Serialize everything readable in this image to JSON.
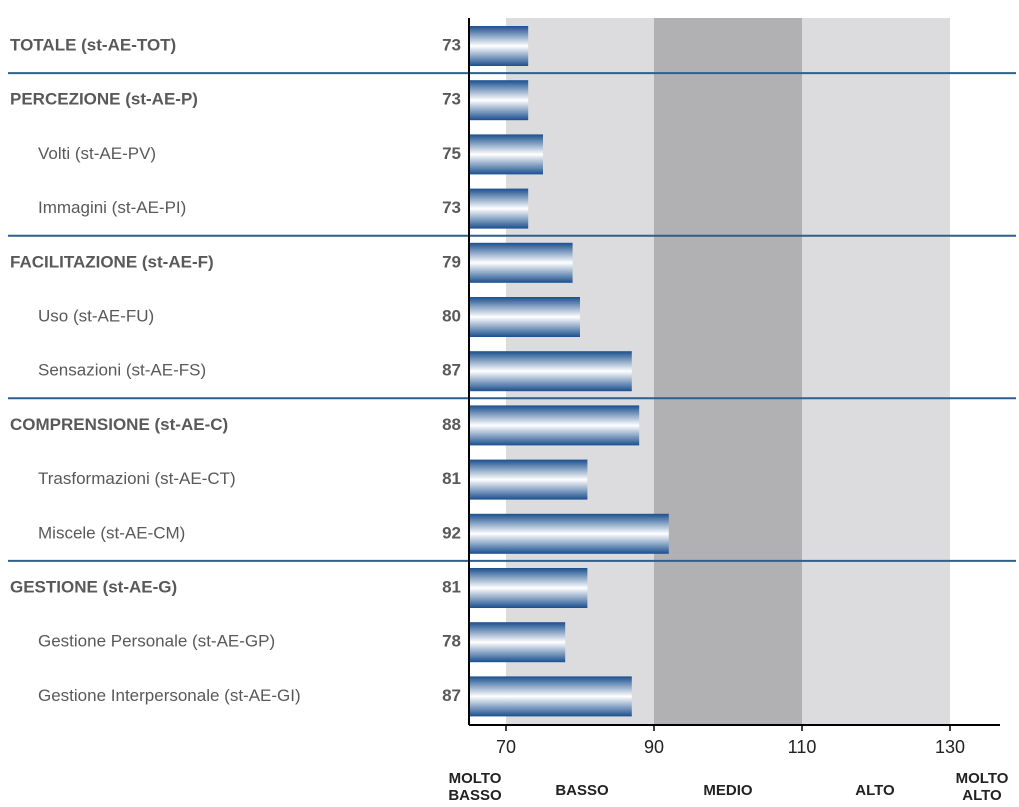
{
  "chart_data": {
    "type": "bar",
    "orientation": "horizontal",
    "categories": [
      "TOTALE (st-AE-TOT)",
      "PERCEZIONE (st-AE-P)",
      "Volti (st-AE-PV)",
      "Immagini (st-AE-PI)",
      "FACILITAZIONE (st-AE-F)",
      "Uso (st-AE-FU)",
      "Sensazioni (st-AE-FS)",
      "COMPRENSIONE (st-AE-C)",
      "Trasformazioni (st-AE-CT)",
      "Miscele (st-AE-CM)",
      "GESTIONE (st-AE-G)",
      "Gestione Personale (st-AE-GP)",
      "Gestione Interpersonale (st-AE-GI)"
    ],
    "values": [
      73,
      73,
      75,
      73,
      79,
      80,
      87,
      88,
      81,
      92,
      81,
      78,
      87
    ],
    "value_labels": [
      "73",
      "73",
      "75",
      "73",
      "79",
      "80",
      "87",
      "88",
      "81",
      "92",
      "81",
      "78",
      "87"
    ],
    "headers": [
      true,
      true,
      false,
      false,
      true,
      false,
      false,
      true,
      false,
      false,
      true,
      false,
      false
    ],
    "xlim": [
      65,
      133
    ],
    "xticks": [
      70,
      90,
      110,
      130
    ],
    "xtick_labels": [
      "70",
      "90",
      "110",
      "130"
    ],
    "bands": [
      {
        "label": [
          "MOLTO",
          "BASSO"
        ],
        "from": null,
        "to": 70,
        "color": "#ffffff"
      },
      {
        "label": [
          "BASSO"
        ],
        "from": 70,
        "to": 90,
        "color": "#dcdcde"
      },
      {
        "label": [
          "MEDIO"
        ],
        "from": 90,
        "to": 110,
        "color": "#b1b1b4"
      },
      {
        "label": [
          "ALTO"
        ],
        "from": 110,
        "to": 130,
        "color": "#dcdcde"
      },
      {
        "label": [
          "MOLTO",
          "ALTO"
        ],
        "from": 130,
        "to": null,
        "color": "#ffffff"
      }
    ],
    "colors": {
      "bar_dark": "#1a4f8e",
      "bar_light": "#ffffff",
      "separator": "#2f5f8a",
      "axis": "#000000"
    },
    "grid": false,
    "legend": "none"
  }
}
